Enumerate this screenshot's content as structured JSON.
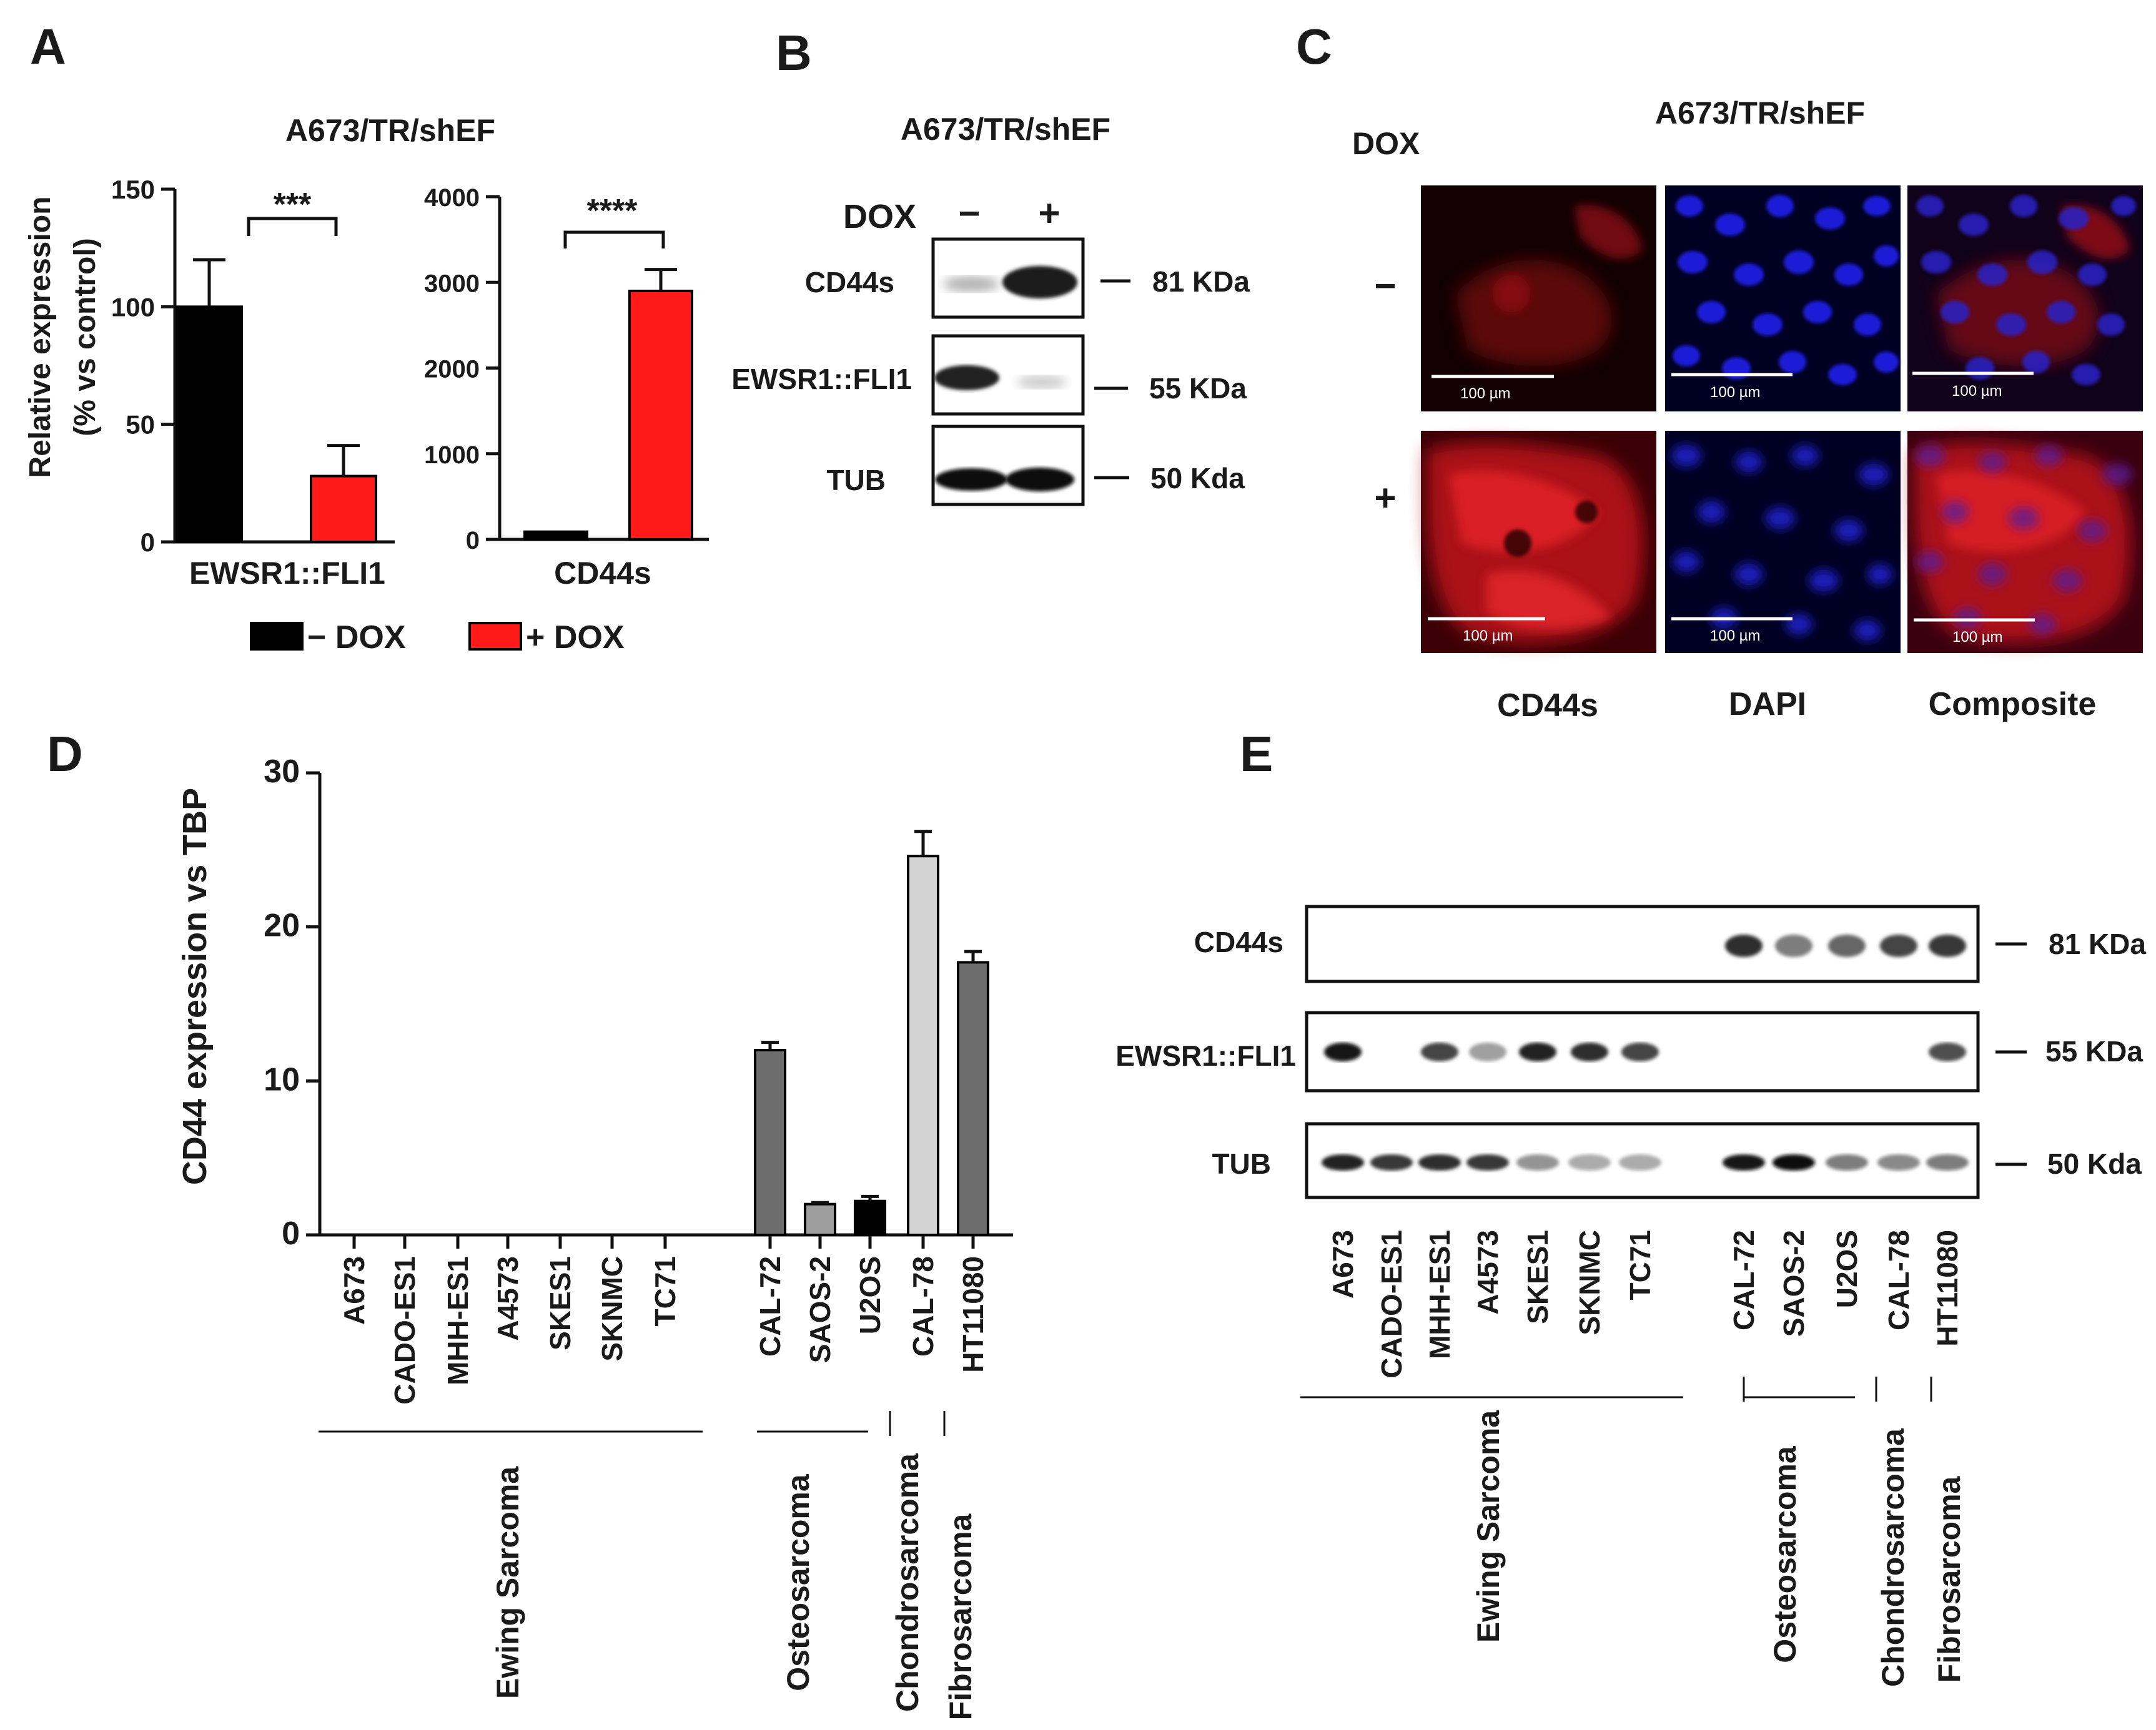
{
  "colors": {
    "black_bar": "#000000",
    "red_bar": "#ff1a1a",
    "dark_gray": "#6d6d6d",
    "mid_gray": "#9e9e9e",
    "light_gray": "#d2d2d2",
    "bg": "#ffffff"
  },
  "panel_letters": {
    "a": "A",
    "b": "B",
    "c": "C",
    "d": "D",
    "e": "E"
  },
  "chart_data": [
    {
      "panel": "A-left",
      "type": "bar",
      "title": "A673/TR/shEF",
      "ylabel": "Relative expression",
      "ylabel2": "(% vs control)",
      "xlabel": "EWSR1::FLI1",
      "ylim": [
        0,
        150
      ],
      "yticks": [
        "150",
        "100",
        "50",
        "0"
      ],
      "significance": "***",
      "series": [
        {
          "name": "− DOX",
          "value": 100,
          "error": 20,
          "color": "#000000"
        },
        {
          "name": "+ DOX",
          "value": 28,
          "error": 13,
          "color": "#ff1a1a"
        }
      ]
    },
    {
      "panel": "A-right",
      "type": "bar",
      "xlabel": "CD44s",
      "ylim": [
        0,
        4000
      ],
      "yticks": [
        "4000",
        "3000",
        "2000",
        "1000",
        "0"
      ],
      "significance": "****",
      "series": [
        {
          "name": "− DOX",
          "value": 90,
          "error": 0,
          "color": "#000000"
        },
        {
          "name": "+ DOX",
          "value": 2900,
          "error": 250,
          "color": "#ff1a1a"
        }
      ]
    },
    {
      "panel": "D",
      "type": "bar",
      "ylabel": "CD44 expression vs TBP",
      "ylim": [
        0,
        30
      ],
      "yticks": [
        "30",
        "20",
        "10",
        "0"
      ],
      "categories": [
        "A673",
        "CADO-ES1",
        "MHH-ES1",
        "A4573",
        "SKES1",
        "SKNMC",
        "TC71",
        "CAL-72",
        "SAOS-2",
        "U2OS",
        "CAL-78",
        "HT11080"
      ],
      "values": [
        0.05,
        0,
        0,
        0,
        0,
        0,
        0,
        12.0,
        2.0,
        2.2,
        24.6,
        17.7
      ],
      "errors": [
        0,
        0,
        0,
        0,
        0,
        0,
        0,
        0.5,
        0.1,
        0.3,
        1.6,
        0.7
      ],
      "fills": [
        "#000000",
        "#000000",
        "#000000",
        "#000000",
        "#000000",
        "#000000",
        "#000000",
        "#6d6d6d",
        "#9e9e9e",
        "#000000",
        "#d2d2d2",
        "#6d6d6d"
      ],
      "groups": [
        "Ewing Sarcoma",
        "Osteosarcoma",
        "Chondrosarcoma",
        "Fibrosarcoma"
      ]
    }
  ],
  "panel_a": {
    "legend": [
      "− DOX",
      "+ DOX"
    ]
  },
  "panel_b": {
    "title": "A673/TR/shEF",
    "dox_label": "DOX",
    "minus": "−",
    "plus": "+",
    "rows": [
      {
        "label": "CD44s",
        "size": "81 KDa"
      },
      {
        "label": "EWSR1::FLI1",
        "size": "55 KDa"
      },
      {
        "label": "TUB",
        "size": "50 Kda"
      }
    ]
  },
  "panel_c": {
    "title": "A673/TR/shEF",
    "dox_label": "DOX",
    "row_labels": [
      "−",
      "+"
    ],
    "col_labels": [
      "CD44s",
      "DAPI",
      "Composite"
    ],
    "scale_bar": "100 µm"
  },
  "panel_e": {
    "rows": [
      {
        "label": "CD44s",
        "size": "81 KDa"
      },
      {
        "label": "EWSR1::FLI1",
        "size": "55 KDa"
      },
      {
        "label": "TUB",
        "size": "50 Kda"
      }
    ],
    "lanes": [
      "A673",
      "CADO-ES1",
      "MHH-ES1",
      "A4573",
      "SKES1",
      "SKNMC",
      "TC71",
      "CAL-72",
      "SAOS-2",
      "U2OS",
      "CAL-78",
      "HT11080"
    ],
    "groups": [
      "Ewing Sarcoma",
      "Osteosarcoma",
      "Chondrosarcoma",
      "Fibrosarcoma"
    ],
    "cd44_intensity": [
      0,
      0,
      0,
      0,
      0,
      0,
      0,
      0.85,
      0.5,
      0.6,
      0.75,
      0.8
    ],
    "ewsr1_intensity": [
      0.95,
      0,
      0.75,
      0.35,
      0.9,
      0.85,
      0.75,
      0,
      0,
      0,
      0,
      0.7
    ],
    "tub_intensity": [
      0.9,
      0.8,
      0.85,
      0.8,
      0.4,
      0.3,
      0.3,
      0.95,
      1.0,
      0.5,
      0.45,
      0.5
    ]
  }
}
